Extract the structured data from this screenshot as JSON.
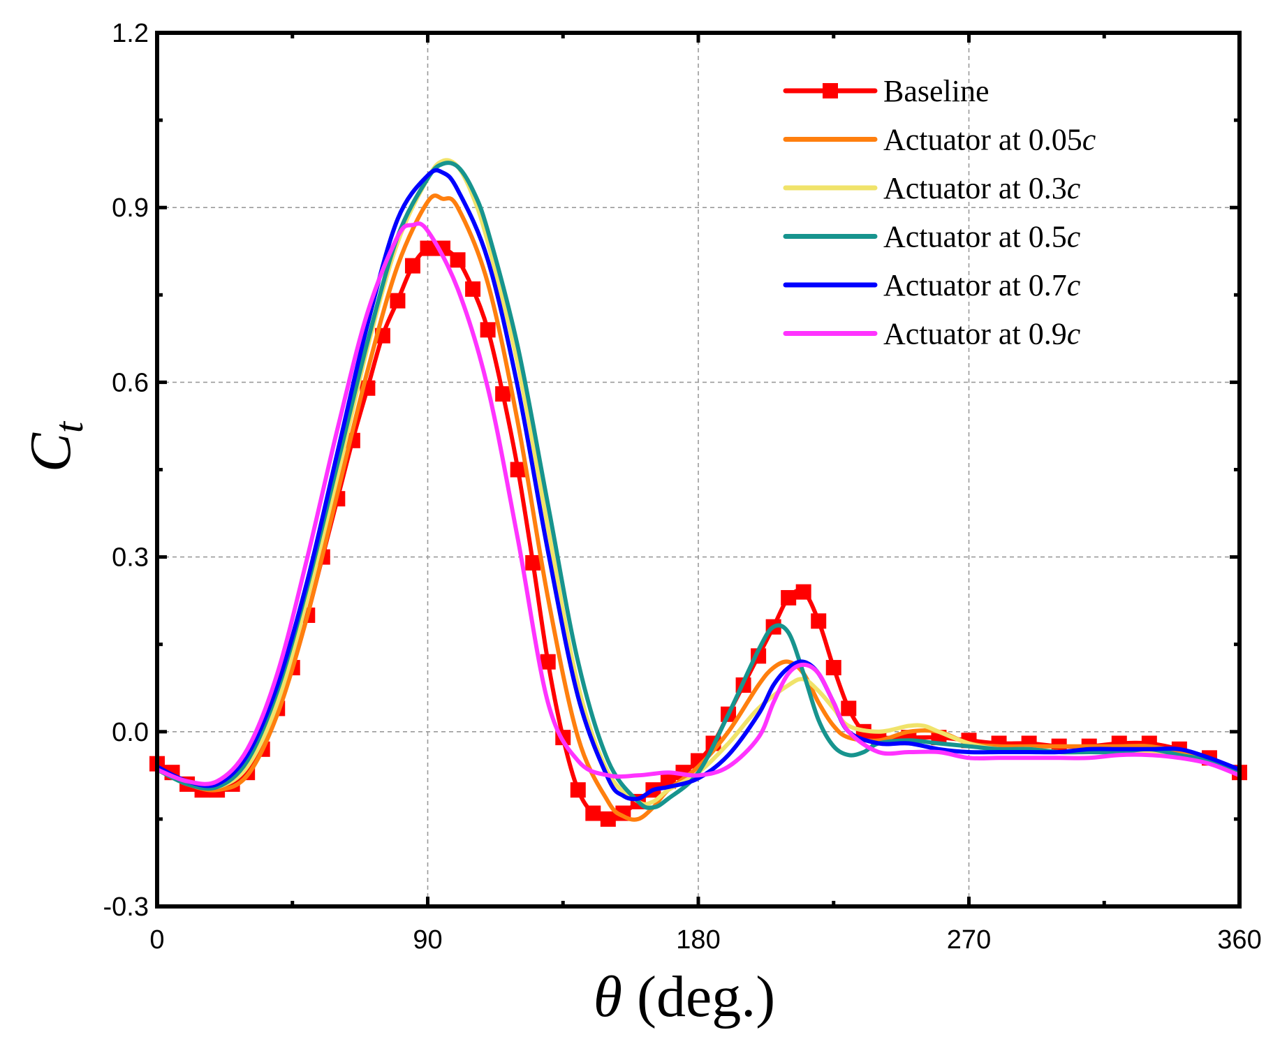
{
  "chart_data": {
    "type": "line",
    "title": "",
    "xlabel": {
      "symbol": "θ",
      "unit": " (deg.)"
    },
    "ylabel": {
      "symbol": "C",
      "subscript": "t"
    },
    "xlim": [
      0,
      360
    ],
    "ylim": [
      -0.3,
      1.2
    ],
    "xticks": [
      0,
      90,
      180,
      270,
      360
    ],
    "xtick_labels": [
      "0",
      "90",
      "180",
      "270",
      "360"
    ],
    "yticks": [
      -0.3,
      0.0,
      0.3,
      0.6,
      0.9,
      1.2
    ],
    "ytick_labels": [
      "-0.3",
      "0.0",
      "0.3",
      "0.6",
      "0.9",
      "1.2"
    ],
    "grid": true,
    "legend_position": "top-right",
    "series": [
      {
        "name": "Baseline",
        "label_main": "Baseline",
        "label_italic": "",
        "color": "#ff0000",
        "marker": "square",
        "x": [
          0,
          5,
          10,
          15,
          20,
          25,
          30,
          35,
          40,
          45,
          50,
          55,
          60,
          65,
          70,
          75,
          80,
          85,
          90,
          95,
          100,
          105,
          110,
          115,
          120,
          125,
          130,
          135,
          140,
          145,
          150,
          155,
          160,
          165,
          170,
          175,
          180,
          185,
          190,
          195,
          200,
          205,
          210,
          215,
          220,
          225,
          230,
          235,
          240,
          250,
          260,
          270,
          280,
          290,
          300,
          310,
          320,
          330,
          340,
          350,
          360
        ],
        "y": [
          -0.055,
          -0.07,
          -0.09,
          -0.1,
          -0.1,
          -0.09,
          -0.07,
          -0.03,
          0.04,
          0.11,
          0.2,
          0.3,
          0.4,
          0.5,
          0.59,
          0.68,
          0.74,
          0.8,
          0.83,
          0.83,
          0.81,
          0.76,
          0.69,
          0.58,
          0.45,
          0.29,
          0.12,
          -0.01,
          -0.1,
          -0.14,
          -0.15,
          -0.14,
          -0.12,
          -0.1,
          -0.085,
          -0.07,
          -0.05,
          -0.02,
          0.03,
          0.08,
          0.13,
          0.18,
          0.23,
          0.24,
          0.19,
          0.11,
          0.04,
          0.0,
          -0.01,
          -0.01,
          -0.01,
          -0.015,
          -0.02,
          -0.02,
          -0.025,
          -0.025,
          -0.02,
          -0.02,
          -0.03,
          -0.045,
          -0.07
        ]
      },
      {
        "name": "Actuator at 0.05c",
        "label_main": "Actuator at 0.05",
        "label_italic": "c",
        "color": "#ff7f0e",
        "marker": "none",
        "x": [
          0,
          10,
          20,
          30,
          40,
          50,
          60,
          70,
          80,
          90,
          95,
          100,
          110,
          120,
          130,
          140,
          150,
          155,
          160,
          165,
          170,
          180,
          190,
          200,
          205,
          210,
          215,
          220,
          225,
          230,
          240,
          250,
          260,
          270,
          280,
          290,
          300,
          310,
          320,
          330,
          340,
          350,
          360
        ],
        "y": [
          -0.065,
          -0.09,
          -0.1,
          -0.075,
          0.03,
          0.2,
          0.41,
          0.62,
          0.8,
          0.91,
          0.915,
          0.9,
          0.77,
          0.53,
          0.23,
          -0.01,
          -0.12,
          -0.145,
          -0.15,
          -0.13,
          -0.1,
          -0.06,
          0.0,
          0.08,
          0.11,
          0.12,
          0.1,
          0.05,
          0.01,
          -0.01,
          -0.015,
          0.0,
          0.0,
          -0.02,
          -0.025,
          -0.025,
          -0.025,
          -0.025,
          -0.025,
          -0.025,
          -0.035,
          -0.05,
          -0.07
        ]
      },
      {
        "name": "Actuator at 0.3c",
        "label_main": "Actuator at 0.3",
        "label_italic": "c",
        "color": "#f0e36a",
        "marker": "none",
        "x": [
          0,
          10,
          20,
          30,
          40,
          50,
          60,
          70,
          80,
          90,
          95,
          100,
          105,
          110,
          120,
          130,
          140,
          150,
          160,
          165,
          170,
          180,
          190,
          200,
          210,
          215,
          220,
          225,
          230,
          240,
          250,
          255,
          260,
          270,
          280,
          290,
          300,
          310,
          320,
          330,
          340,
          350,
          360
        ],
        "y": [
          -0.065,
          -0.09,
          -0.095,
          -0.06,
          0.05,
          0.23,
          0.44,
          0.66,
          0.84,
          0.95,
          0.98,
          0.97,
          0.92,
          0.84,
          0.63,
          0.35,
          0.08,
          -0.07,
          -0.12,
          -0.12,
          -0.1,
          -0.07,
          -0.02,
          0.04,
          0.08,
          0.09,
          0.07,
          0.04,
          0.01,
          0.0,
          0.01,
          0.01,
          0.0,
          -0.02,
          -0.03,
          -0.03,
          -0.035,
          -0.035,
          -0.035,
          -0.035,
          -0.04,
          -0.05,
          -0.07
        ]
      },
      {
        "name": "Actuator at 0.5c",
        "label_main": "Actuator at 0.5",
        "label_italic": "c",
        "color": "#17948e",
        "marker": "none",
        "x": [
          0,
          10,
          20,
          30,
          40,
          50,
          60,
          70,
          80,
          90,
          95,
          100,
          105,
          110,
          120,
          130,
          140,
          150,
          160,
          165,
          170,
          180,
          190,
          200,
          205,
          210,
          215,
          220,
          225,
          230,
          235,
          240,
          250,
          260,
          270,
          280,
          290,
          300,
          310,
          320,
          330,
          340,
          350,
          360
        ],
        "y": [
          -0.065,
          -0.09,
          -0.095,
          -0.05,
          0.07,
          0.25,
          0.46,
          0.67,
          0.85,
          0.95,
          0.975,
          0.97,
          0.93,
          0.86,
          0.66,
          0.39,
          0.12,
          -0.05,
          -0.12,
          -0.13,
          -0.115,
          -0.07,
          0.03,
          0.14,
          0.18,
          0.17,
          0.1,
          0.02,
          -0.025,
          -0.04,
          -0.035,
          -0.02,
          -0.015,
          -0.02,
          -0.025,
          -0.03,
          -0.03,
          -0.035,
          -0.035,
          -0.035,
          -0.03,
          -0.04,
          -0.05,
          -0.07
        ]
      },
      {
        "name": "Actuator at 0.7c",
        "label_main": "Actuator at 0.7",
        "label_italic": "c",
        "color": "#0000ff",
        "marker": "none",
        "x": [
          0,
          10,
          20,
          30,
          40,
          50,
          60,
          70,
          80,
          90,
          95,
          100,
          110,
          120,
          130,
          140,
          150,
          155,
          160,
          165,
          170,
          180,
          190,
          200,
          205,
          210,
          215,
          220,
          225,
          230,
          240,
          250,
          260,
          270,
          280,
          290,
          300,
          310,
          320,
          330,
          340,
          350,
          360
        ],
        "y": [
          -0.06,
          -0.085,
          -0.09,
          -0.04,
          0.08,
          0.26,
          0.48,
          0.7,
          0.88,
          0.955,
          0.96,
          0.93,
          0.81,
          0.59,
          0.31,
          0.06,
          -0.08,
          -0.11,
          -0.115,
          -0.1,
          -0.095,
          -0.08,
          -0.04,
          0.03,
          0.08,
          0.11,
          0.12,
          0.1,
          0.05,
          0.0,
          -0.02,
          -0.02,
          -0.03,
          -0.035,
          -0.035,
          -0.035,
          -0.035,
          -0.03,
          -0.03,
          -0.03,
          -0.03,
          -0.045,
          -0.065
        ]
      },
      {
        "name": "Actuator at 0.9c",
        "label_main": "Actuator at 0.9",
        "label_italic": "c",
        "color": "#ff33ff",
        "marker": "none",
        "x": [
          0,
          10,
          20,
          30,
          40,
          50,
          60,
          70,
          80,
          85,
          90,
          100,
          110,
          120,
          130,
          140,
          150,
          160,
          170,
          180,
          190,
          200,
          205,
          210,
          215,
          220,
          225,
          230,
          240,
          250,
          260,
          270,
          280,
          290,
          300,
          310,
          320,
          330,
          340,
          350,
          360
        ],
        "y": [
          -0.065,
          -0.085,
          -0.085,
          -0.03,
          0.1,
          0.3,
          0.52,
          0.72,
          0.85,
          0.87,
          0.86,
          0.76,
          0.59,
          0.33,
          0.05,
          -0.05,
          -0.075,
          -0.075,
          -0.07,
          -0.075,
          -0.06,
          -0.01,
          0.05,
          0.1,
          0.115,
          0.1,
          0.05,
          0.0,
          -0.035,
          -0.035,
          -0.035,
          -0.045,
          -0.045,
          -0.045,
          -0.045,
          -0.045,
          -0.04,
          -0.04,
          -0.045,
          -0.055,
          -0.075
        ]
      }
    ]
  }
}
